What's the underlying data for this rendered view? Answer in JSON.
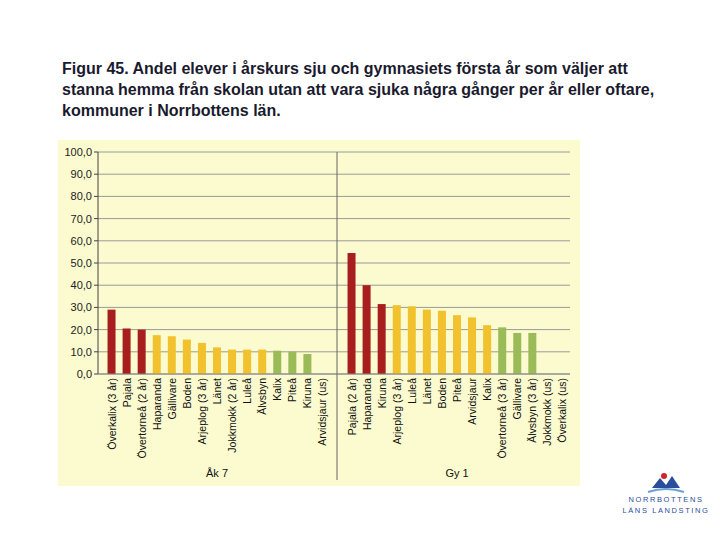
{
  "chart_data": [
    {
      "type": "bar",
      "title": "Figur 45. Andel elever i årskurs sju och gymnasiets första år som väljer att stanna hemma från skolan utan att vara sjuka några gånger per år eller oftare, kommuner i Norrbottens län.",
      "x_label": "Åk 7",
      "categories": [
        "Överkalix (3 år)",
        "Pajala",
        "Övertorneå (2 år)",
        "Haparanda",
        "Gällivare",
        "Boden",
        "Arjeplog (3 år)",
        "Länet",
        "Jokkmokk (2 år)",
        "Luleå",
        "Älvsbyn",
        "Kalix",
        "Piteå",
        "Kiruna",
        "Arvidsjaur (us)"
      ],
      "values": [
        29,
        20.5,
        20,
        17.5,
        17,
        15.5,
        14,
        12,
        11,
        11,
        11,
        10.5,
        10,
        9,
        null
      ],
      "colors": [
        "#a81e1e",
        "#a81e1e",
        "#a81e1e",
        "#f2c12e",
        "#f2c12e",
        "#f2c12e",
        "#f2c12e",
        "#f2c12e",
        "#f2c12e",
        "#f2c12e",
        "#f2c12e",
        "#9bbb59",
        "#9bbb59",
        "#9bbb59",
        null
      ],
      "ylim": [
        0,
        100
      ],
      "yticks": [
        {
          "value": 0,
          "label": "0,0"
        },
        {
          "value": 10,
          "label": "10,0"
        },
        {
          "value": 20,
          "label": "20,0"
        },
        {
          "value": 30,
          "label": "30,0"
        },
        {
          "value": 40,
          "label": "40,0"
        },
        {
          "value": 50,
          "label": "50,0"
        },
        {
          "value": 60,
          "label": "60,0"
        },
        {
          "value": 70,
          "label": "70,0"
        },
        {
          "value": 80,
          "label": "80,0"
        },
        {
          "value": 90,
          "label": "90,0"
        },
        {
          "value": 100,
          "label": "100,0"
        }
      ],
      "grid": true
    },
    {
      "type": "bar",
      "x_label": "Gy 1",
      "categories": [
        "Pajala (2 år)",
        "Haparanda",
        "Kiruna",
        "Arjeplog (3 år)",
        "Luleå",
        "Länet",
        "Boden",
        "Piteå",
        "Arvidsjaur",
        "Kalix",
        "Övertorneå (3 år)",
        "Gällivare",
        "Älvsbyn (3 år)",
        "Jokkmokk (us)",
        "Överkalix (us)"
      ],
      "values": [
        54.5,
        40,
        31.5,
        31,
        30.5,
        29,
        28.5,
        26.5,
        25.5,
        22,
        21,
        18.5,
        18.5,
        null,
        null
      ],
      "colors": [
        "#a81e1e",
        "#a81e1e",
        "#a81e1e",
        "#f2c12e",
        "#f2c12e",
        "#f2c12e",
        "#f2c12e",
        "#f2c12e",
        "#f2c12e",
        "#f2c12e",
        "#9bbb59",
        "#9bbb59",
        "#9bbb59",
        null,
        null
      ],
      "ylim": [
        0,
        100
      ],
      "yticks": [
        {
          "value": 0,
          "label": "0,0"
        },
        {
          "value": 10,
          "label": "10,0"
        },
        {
          "value": 20,
          "label": "20,0"
        },
        {
          "value": 30,
          "label": "30,0"
        },
        {
          "value": 40,
          "label": "40,0"
        },
        {
          "value": 50,
          "label": "50,0"
        },
        {
          "value": 60,
          "label": "60,0"
        },
        {
          "value": 70,
          "label": "70,0"
        },
        {
          "value": 80,
          "label": "80,0"
        },
        {
          "value": 90,
          "label": "90,0"
        },
        {
          "value": 100,
          "label": "100,0"
        }
      ],
      "grid": true,
      "tick_labels": "x"
    }
  ],
  "logo_text": [
    "NORRBOTTENS",
    "LÄNS LANDSTING"
  ]
}
